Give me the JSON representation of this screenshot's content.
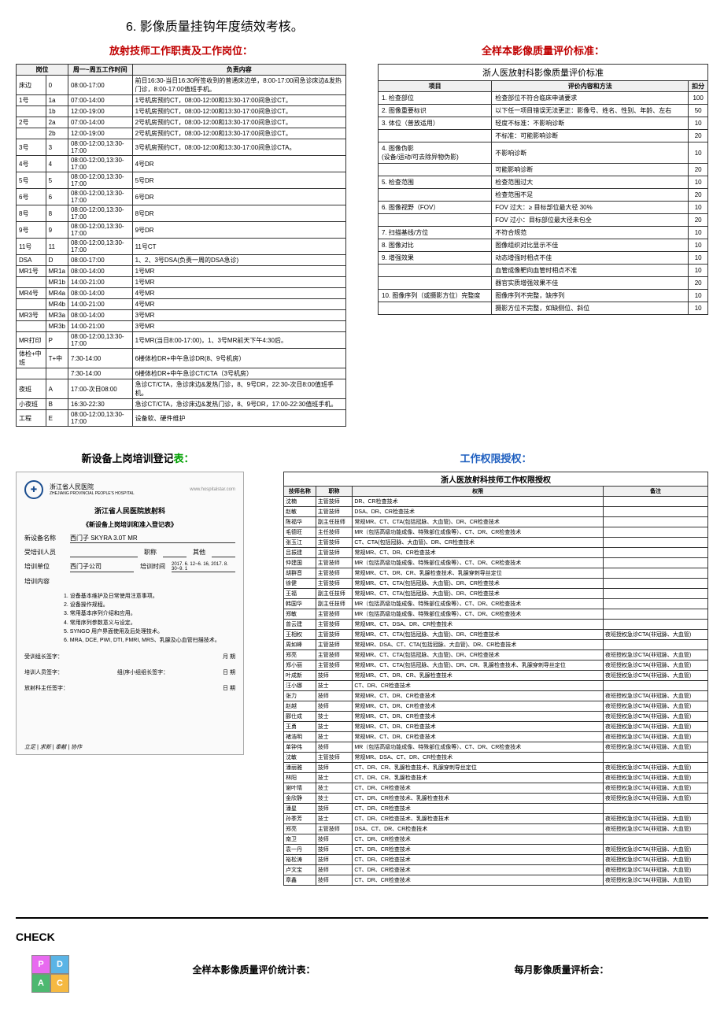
{
  "page_title": "6.    影像质量挂钩年度绩效考核。",
  "sec1": {
    "left_title": "放射技师工作职责及工作岗位：",
    "right_title": "全样本影像质量评价标准：",
    "right_subtitle": "浙人医放射科影像质量评价标准",
    "positions": {
      "headers": [
        "岗位",
        "周一~周五工作时间",
        "负责内容"
      ],
      "rows": [
        {
          "col1": "床边",
          "col2": "0",
          "col3": "08:00-17:00",
          "content": "前日16:30-当日16:30所签收到的普通床边单，8:00-17:00间急诊床边&发热门诊，8:00-17:00值班手机。"
        },
        {
          "col1": "1号",
          "col2": "1a",
          "col3": "07:00-14:00",
          "content": "1号机房预约CT，08:00-12:00和13:30-17:00间急诊CT。"
        },
        {
          "col1": "",
          "col2": "1b",
          "col3": "12:00-19:00",
          "content": "1号机房预约CT，08:00-12:00和13:30-17:00间急诊CT。"
        },
        {
          "col1": "2号",
          "col2": "2a",
          "col3": "07:00-14:00",
          "content": "2号机房预约CT，08:00-12:00和13:30-17:00间急诊CT。"
        },
        {
          "col1": "",
          "col2": "2b",
          "col3": "12:00-19:00",
          "content": "2号机房预约CT，08:00-12:00和13:30-17:00间急诊CT。"
        },
        {
          "col1": "3号",
          "col2": "3",
          "col3": "08:00-12:00,13:30-17:00",
          "content": "3号机房预约CT，08:00-12:00和13:30-17:00间急诊CTA。"
        },
        {
          "col1": "4号",
          "col2": "4",
          "col3": "08:00-12:00,13:30-17:00",
          "content": "4号DR"
        },
        {
          "col1": "5号",
          "col2": "5",
          "col3": "08:00-12:00,13:30-17:00",
          "content": "5号DR"
        },
        {
          "col1": "6号",
          "col2": "6",
          "col3": "08:00-12:00,13:30-17:00",
          "content": "6号DR"
        },
        {
          "col1": "8号",
          "col2": "8",
          "col3": "08:00-12:00,13:30-17:00",
          "content": "8号DR"
        },
        {
          "col1": "9号",
          "col2": "9",
          "col3": "08:00-12:00,13:30-17:00",
          "content": "9号DR"
        },
        {
          "col1": "11号",
          "col2": "11",
          "col3": "08:00-12:00,13:30-17:00",
          "content": "11号CT"
        },
        {
          "col1": "DSA",
          "col2": "D",
          "col3": "08:00-17:00",
          "content": "1、2、3号DSA(负责一周的DSA急诊)"
        },
        {
          "col1": "MR1号",
          "col2": "MR1a",
          "col3": "08:00-14:00",
          "content": "1号MR"
        },
        {
          "col1": "",
          "col2": "MR1b",
          "col3": "14:00-21:00",
          "content": "1号MR"
        },
        {
          "col1": "MR4号",
          "col2": "MR4a",
          "col3": "08:00-14:00",
          "content": "4号MR"
        },
        {
          "col1": "",
          "col2": "MR4b",
          "col3": "14:00-21:00",
          "content": "4号MR"
        },
        {
          "col1": "MR3号",
          "col2": "MR3a",
          "col3": "08:00-14:00",
          "content": "3号MR"
        },
        {
          "col1": "",
          "col2": "MR3b",
          "col3": "14:00-21:00",
          "content": "3号MR"
        },
        {
          "col1": "MR打印",
          "col2": "P",
          "col3": "08:00-12:00,13:30-17:00",
          "content": "1号MR(当日8:00-17:00)，1、3号MR前天下午4:30后。"
        },
        {
          "col1": "体检+中班",
          "col2": "T+中",
          "col3": "7:30-14:00",
          "content": "6楼体检DR+中午急诊DR(8、9号机房）"
        },
        {
          "col1": "",
          "col2": "",
          "col3": "7:30-14:00",
          "content": "6楼体检DR+中午急诊CT/CTA（3号机房）"
        },
        {
          "col1": "夜班",
          "col2": "A",
          "col3": "17:00-次日08:00",
          "content": "急诊CT/CTA，急诊床边&发热门诊，8、9号DR，22:30-次日8:00值班手机。"
        },
        {
          "col1": "小夜班",
          "col2": "B",
          "col3": "16:30-22:30",
          "content": "急诊CT/CTA，急诊床边&发热门诊，8、9号DR，17:00-22:30值班手机。"
        },
        {
          "col1": "工程",
          "col2": "E",
          "col3": "08:00-12:00,13:30-17:00",
          "content": "设备软、硬件维护"
        }
      ]
    },
    "quality": {
      "headers": [
        "项目",
        "评价内容和方法",
        "扣分"
      ],
      "rows": [
        {
          "item": "1. 检查部位",
          "content": "检查部位不符合临床申请要求",
          "score": "100"
        },
        {
          "item": "2. 图像重要标识",
          "content": "以下任一项目错误无法更正：影像号、姓名、性别、年龄、左右",
          "score": "50"
        },
        {
          "item": "3. 体位（普放适用）",
          "content": "轻度不标准：不影响诊断",
          "score": "10"
        },
        {
          "item": "",
          "content": "不标准：可能影响诊断",
          "score": "20"
        },
        {
          "item": "4. 图像伪影\n(设备/运动/可去除异物伪影)",
          "content": "不影响诊断",
          "score": "10"
        },
        {
          "item": "",
          "content": "可能影响诊断",
          "score": "20"
        },
        {
          "item": "5. 检查范围",
          "content": "检查范围过大",
          "score": "10"
        },
        {
          "item": "",
          "content": "检查范围不足",
          "score": "20"
        },
        {
          "item": "6. 图像视野（FOV）",
          "content": "FOV 过大：≥ 目标部位最大径 30%",
          "score": "10"
        },
        {
          "item": "",
          "content": "FOV 过小：目标部位最大径未包全",
          "score": "20"
        },
        {
          "item": "7. 扫描基线/方位",
          "content": "不符合规范",
          "score": "10"
        },
        {
          "item": "8. 图像对比",
          "content": "图像组织对比显示不佳",
          "score": "10"
        },
        {
          "item": "9. 增强效果",
          "content": "动态增强时相点不佳",
          "score": "10"
        },
        {
          "item": "",
          "content": "血管成像靶向血管时相点不准",
          "score": "10"
        },
        {
          "item": "",
          "content": "器官实质增强效果不佳",
          "score": "20"
        },
        {
          "item": "10. 图像序列（或摄影方位）完整度",
          "content": "图像序列不完整，缺序列",
          "score": "10"
        },
        {
          "item": "",
          "content": "摄影方位不完整，如缺侧位、斜位",
          "score": "10"
        }
      ]
    }
  },
  "sec2": {
    "left_title": "新设备上岗培训登记表：",
    "right_title": "工作权限授权：",
    "form": {
      "hospital_cn": "浙江省人民医院",
      "hospital_en": "ZHEJIANG PROVINCIAL PEOPLE'S HOSPITAL",
      "url": "www.hospitalstar.com",
      "subtitle": "浙江省人民医院放射科",
      "form_name": "《新设备上岗培训和准入登记表》",
      "fields": {
        "device_label": "新设备名称",
        "device_value": "西门子 SKYRA 3.0T MR",
        "trainee_label": "受培训人员",
        "code_label": "职称",
        "other_label": "其他",
        "unit_label": "培训单位",
        "unit_value": "西门子公司",
        "time_label": "培训时间",
        "time_value": "2017. 6. 12~6. 16, 2017. 8. 30~9. 1",
        "content_label": "培训内容",
        "content_items": [
          "1. 设备基本维护及日常使用注意事项。",
          "2. 设备操作规程。",
          "3. 常用基本序列介绍和应用。",
          "4. 常用序列参数意义与设定。",
          "5. SYNGO 用户界面使用及后处理技术。",
          "6. MRA, DCE, PWI, DTI, FMRI, MRS、乳腺及心血管扫描技术。"
        ],
        "sign1_label": "受训组长签字：",
        "sign1b": "月 期",
        "sign2_label": "培训人员签字：",
        "sign2b": "组(序小组组长签字：",
        "sign2c": "日 期",
        "sign3_label": "放射科主任签字：",
        "sign3b": "日 期"
      },
      "footer": "立足 | 求新 | 奉献 | 协作"
    },
    "auth": {
      "title": "浙人医放射科技师工作权限授权",
      "headers": [
        "技师名称",
        "职称",
        "权限",
        "备注"
      ],
      "rows": [
        [
          "沈楠",
          "主管技师",
          "DR、CR检查技术",
          ""
        ],
        [
          "赵敏",
          "主管技师",
          "DSA、DR、CR检查技术",
          ""
        ],
        [
          "陈福华",
          "副主任技师",
          "常规MR、CT、CTA(包括冠脉、大血管)、DR、CR检查技术",
          ""
        ],
        [
          "毛德旺",
          "主任技师",
          "MR（包括高级功能成像、特殊部位成像等）、CT、DR、CR检查技术",
          ""
        ],
        [
          "张玉江",
          "主管技师",
          "CT、CTA(包括冠脉、大血管)、DR、CR检查技术",
          ""
        ],
        [
          "吕振建",
          "主管技师",
          "常规MR、CT、DR、CR检查技术",
          ""
        ],
        [
          "仲建国",
          "主管技师",
          "MR（包括高级功能成像、特殊部位成像等）、CT、DR、CR检查技术",
          ""
        ],
        [
          "胡群音",
          "主管技师",
          "常规MR、CT、DR、CR、乳腺检查技术、乳腺穿刺导丝定位",
          ""
        ],
        [
          "徐健",
          "主管技师",
          "常规MR、CT、CTA(包括冠脉、大血管)、DR、CR检查技术",
          ""
        ],
        [
          "王福",
          "副主任技师",
          "常规MR、CT、CTA(包括冠脉、大血管)、DR、CR检查技术",
          ""
        ],
        [
          "韩国华",
          "副主任技师",
          "MR（包括高级功能成像、特殊部位成像等）、CT、DR、CR检查技术",
          ""
        ],
        [
          "郑敏",
          "主管技师",
          "MR（包括高级功能成像、特殊部位成像等）、CT、DR、CR检查技术",
          ""
        ],
        [
          "曾云建",
          "主管技师",
          "常规MR、CT、DSA、DR、CR检查技术",
          ""
        ],
        [
          "王相权",
          "主管技师",
          "常规MR、CT、CTA(包括冠脉、大血管)、DR、CR检查技术",
          "夜班授权急诊CTA(非冠脉、大血管)"
        ],
        [
          "周如峰",
          "主管技师",
          "常规MR、DSA、CT、CTA(包括冠脉、大血管)、DR、CR检查技术",
          ""
        ],
        [
          "郑亮",
          "主管技师",
          "常规MR、CT、CTA(包括冠脉、大血管)、DR、CR检查技术",
          "夜班授权急诊CTA(非冠脉、大血管)"
        ],
        [
          "郑小丽",
          "主管技师",
          "常规MR、CT、CTA(包括冠脉、大血管)、DR、CR、乳腺检查技术、乳腺穿刺导丝定位",
          "夜班授权急诊CTA(非冠脉、大血管)"
        ],
        [
          "叶成新",
          "技师",
          "常规MR、CT、DR、CR、乳腺检查技术",
          "夜班授权急诊CTA(非冠脉、大血管)"
        ],
        [
          "汪小娜",
          "技士",
          "CT、DR、CR检查技术",
          ""
        ],
        [
          "张力",
          "技师",
          "常规MR、CT、DR、CR检查技术",
          "夜班授权急诊CTA(非冠脉、大血管)"
        ],
        [
          "赵越",
          "技师",
          "常规MR、CT、DR、CR检查技术",
          "夜班授权急诊CTA(非冠脉、大血管)"
        ],
        [
          "郦仕成",
          "技士",
          "常规MR、CT、DR、CR检查技术",
          "夜班授权急诊CTA(非冠脉、大血管)"
        ],
        [
          "王勇",
          "技士",
          "常规MR、CT、DR、CR检查技术",
          "夜班授权急诊CTA(非冠脉、大血管)"
        ],
        [
          "褚浩明",
          "技士",
          "常规MR、CT、DR、CR检查技术",
          "夜班授权急诊CTA(非冠脉、大血管)"
        ],
        [
          "单钟伟",
          "技师",
          "MR（包括高级功能成像、特殊部位成像等）、CT、DR、CR检查技术",
          "夜班授权急诊CTA(非冠脉、大血管)"
        ],
        [
          "沈敏",
          "主管技师",
          "常规MR、DSA、CT、DR、CR检查技术",
          ""
        ],
        [
          "潘丽雅",
          "技师",
          "CT、DR、CR、乳腺检查技术、乳腺穿刺导丝定位",
          "夜班授权急诊CTA(非冠脉、大血管)"
        ],
        [
          "林阳",
          "技士",
          "CT、DR、CR、乳腺检查技术",
          "夜班授权急诊CTA(非冠脉、大血管)"
        ],
        [
          "谢叶晴",
          "技士",
          "CT、DR、CR检查技术",
          "夜班授权急诊CTA(非冠脉、大血管)"
        ],
        [
          "金欣静",
          "技士",
          "CT、DR、CR检查技术、乳腺检查技术",
          "夜班授权急诊CTA(非冠脉、大血管)"
        ],
        [
          "潘星",
          "技师",
          "CT、DR、CR检查技术",
          ""
        ],
        [
          "孙季芳",
          "技士",
          "CT、DR、CR检查技术、乳腺检查技术",
          "夜班授权急诊CTA(非冠脉、大血管)"
        ],
        [
          "郑亮",
          "主管技师",
          "DSA、CT、DR、CR检查技术",
          "夜班授权急诊CTA(非冠脉、大血管)"
        ],
        [
          "南卫",
          "技师",
          "CT、DR、CR检查技术",
          ""
        ],
        [
          "袁一丹",
          "技师",
          "CT、DR、CR检查技术",
          "夜班授权急诊CTA(非冠脉、大血管)"
        ],
        [
          "裕松涛",
          "技师",
          "CT、DR、CR检查技术",
          "夜班授权急诊CTA(非冠脉、大血管)"
        ],
        [
          "卢文宝",
          "技师",
          "CT、DR、CR检查技术",
          "夜班授权急诊CTA(非冠脉、大血管)"
        ],
        [
          "章鑫",
          "技师",
          "CT、DR、CR检查技术",
          "夜班授权急诊CTA(非冠脉、大血管)"
        ]
      ]
    }
  },
  "footer": {
    "check_label": "CHECK",
    "left_label": "全样本影像质量评价统计表：",
    "right_label": "每月影像质量评析会："
  }
}
